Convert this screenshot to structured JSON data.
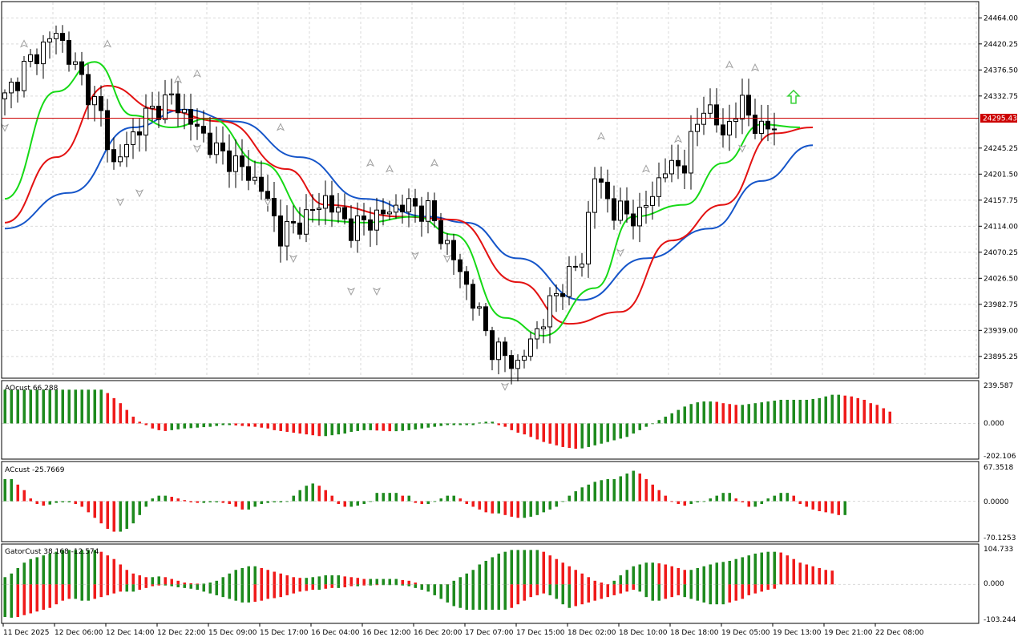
{
  "colors": {
    "background": "#ffffff",
    "grid": "#d9d9d9",
    "frame": "#000000",
    "bull_candle": "#ffffff",
    "bear_candle": "#000000",
    "alligator_jaw": "#1555c9",
    "alligator_teeth": "#e31212",
    "alligator_lips": "#16d916",
    "price_line": "#cc0000",
    "osc_up": "#1e8a1e",
    "osc_down": "#ef1a1a",
    "fractal": "#a0a0a0",
    "signal_arrow": "#35d035"
  },
  "price_panel": {
    "current_price": "24295.43",
    "ticks": [
      "24464.00",
      "24420.25",
      "24376.50",
      "24332.75",
      "24245.25",
      "24201.50",
      "24157.75",
      "24114.00",
      "24070.25",
      "24026.50",
      "23982.75",
      "23939.00",
      "23895.25"
    ],
    "signal_icon": "up-arrow-icon",
    "fractal_icon": "fractal-arrow-icon"
  },
  "indicators": [
    {
      "id": "ao",
      "label": "AOcust 66.288",
      "ticks": [
        "239.587",
        "0.000",
        "-202.106"
      ]
    },
    {
      "id": "ac",
      "label": "ACcust -25.7669",
      "ticks": [
        "67.3518",
        "0.0000",
        "-70.1253"
      ]
    },
    {
      "id": "gator",
      "label": "GatorCust 38.168 -12.574",
      "ticks": [
        "104.733",
        "0.000",
        "-103.244"
      ]
    }
  ],
  "x_labels": [
    "11 Dec 2025",
    "12 Dec 06:00",
    "12 Dec 14:00",
    "12 Dec 22:00",
    "15 Dec 09:00",
    "15 Dec 17:00",
    "16 Dec 04:00",
    "16 Dec 12:00",
    "16 Dec 20:00",
    "17 Dec 07:00",
    "17 Dec 15:00",
    "18 Dec 02:00",
    "18 Dec 10:00",
    "18 Dec 18:00",
    "19 Dec 05:00",
    "19 Dec 13:00",
    "19 Dec 21:00",
    "22 Dec 08:00"
  ],
  "chart_data": [
    {
      "type": "candlestick",
      "title": "",
      "ylim": [
        23860,
        24490
      ],
      "current_price": 24295.43,
      "candle_count": 121,
      "ohlc_anchors": [
        {
          "i": 0,
          "close": 24330
        },
        {
          "i": 3,
          "close": 24380
        },
        {
          "i": 8,
          "close": 24440
        },
        {
          "i": 12,
          "close": 24360
        },
        {
          "i": 15,
          "close": 24300
        },
        {
          "i": 17,
          "close": 24215
        },
        {
          "i": 19,
          "close": 24250
        },
        {
          "i": 22,
          "close": 24300
        },
        {
          "i": 26,
          "close": 24330
        },
        {
          "i": 29,
          "close": 24290
        },
        {
          "i": 33,
          "close": 24240
        },
        {
          "i": 36,
          "close": 24220
        },
        {
          "i": 40,
          "close": 24180
        },
        {
          "i": 43,
          "close": 24100
        },
        {
          "i": 46,
          "close": 24120
        },
        {
          "i": 50,
          "close": 24160
        },
        {
          "i": 54,
          "close": 24110
        },
        {
          "i": 58,
          "close": 24130
        },
        {
          "i": 62,
          "close": 24150
        },
        {
          "i": 66,
          "close": 24140
        },
        {
          "i": 70,
          "close": 24060
        },
        {
          "i": 73,
          "close": 23990
        },
        {
          "i": 76,
          "close": 23910
        },
        {
          "i": 80,
          "close": 23880
        },
        {
          "i": 83,
          "close": 23940
        },
        {
          "i": 86,
          "close": 24000
        },
        {
          "i": 90,
          "close": 24060
        },
        {
          "i": 92,
          "close": 24200
        },
        {
          "i": 95,
          "close": 24140
        },
        {
          "i": 99,
          "close": 24130
        },
        {
          "i": 103,
          "close": 24210
        },
        {
          "i": 106,
          "close": 24220
        },
        {
          "i": 109,
          "close": 24320
        },
        {
          "i": 112,
          "close": 24270
        },
        {
          "i": 115,
          "close": 24320
        },
        {
          "i": 118,
          "close": 24270
        },
        {
          "i": 120,
          "close": 24290
        }
      ],
      "alligator": {
        "jaw": [
          [
            0,
            24110
          ],
          [
            10,
            24170
          ],
          [
            20,
            24280
          ],
          [
            28,
            24310
          ],
          [
            36,
            24290
          ],
          [
            46,
            24230
          ],
          [
            56,
            24160
          ],
          [
            66,
            24130
          ],
          [
            72,
            24120
          ],
          [
            80,
            24060
          ],
          [
            90,
            23990
          ],
          [
            100,
            24060
          ],
          [
            110,
            24110
          ],
          [
            118,
            24190
          ],
          [
            126,
            24250
          ]
        ],
        "teeth": [
          [
            0,
            24120
          ],
          [
            8,
            24230
          ],
          [
            16,
            24350
          ],
          [
            24,
            24310
          ],
          [
            34,
            24290
          ],
          [
            44,
            24210
          ],
          [
            50,
            24150
          ],
          [
            62,
            24130
          ],
          [
            70,
            24125
          ],
          [
            80,
            24020
          ],
          [
            88,
            23950
          ],
          [
            96,
            23970
          ],
          [
            104,
            24090
          ],
          [
            112,
            24150
          ],
          [
            120,
            24270
          ],
          [
            126,
            24280
          ]
        ],
        "lips": [
          [
            0,
            24160
          ],
          [
            8,
            24340
          ],
          [
            14,
            24390
          ],
          [
            20,
            24300
          ],
          [
            26,
            24280
          ],
          [
            32,
            24295
          ],
          [
            40,
            24220
          ],
          [
            48,
            24125
          ],
          [
            56,
            24120
          ],
          [
            64,
            24130
          ],
          [
            70,
            24100
          ],
          [
            78,
            23960
          ],
          [
            84,
            23930
          ],
          [
            92,
            24010
          ],
          [
            98,
            24130
          ],
          [
            106,
            24150
          ],
          [
            112,
            24220
          ],
          [
            118,
            24285
          ],
          [
            124,
            24280
          ]
        ]
      },
      "fractals": {
        "up": [
          [
            3,
            24410
          ],
          [
            16,
            24410
          ],
          [
            27,
            24350
          ],
          [
            30,
            24360
          ],
          [
            43,
            24270
          ],
          [
            57,
            24210
          ],
          [
            60,
            24200
          ],
          [
            67,
            24210
          ],
          [
            93,
            24255
          ],
          [
            100,
            24200
          ],
          [
            105,
            24250
          ],
          [
            113,
            24375
          ],
          [
            117,
            24370
          ]
        ],
        "down": [
          [
            0,
            24290
          ],
          [
            18,
            24165
          ],
          [
            21,
            24180
          ],
          [
            30,
            24255
          ],
          [
            41,
            24165
          ],
          [
            45,
            24070
          ],
          [
            54,
            24015
          ],
          [
            58,
            24015
          ],
          [
            64,
            24075
          ],
          [
            69,
            24070
          ],
          [
            78,
            23855
          ],
          [
            96,
            24080
          ],
          [
            115,
            24255
          ]
        ]
      },
      "signal_up_index": 123
    },
    {
      "type": "bar",
      "name": "AOcust",
      "ylim": [
        -202.106,
        239.587
      ],
      "last_value": 66.288,
      "series": [
        {
          "name": "AOcust",
          "values": [
            200,
            200,
            200,
            200,
            200,
            200,
            200,
            200,
            200,
            200,
            200,
            200,
            200,
            200,
            200,
            200,
            180,
            150,
            120,
            80,
            40,
            10,
            -10,
            -30,
            -40,
            -45,
            -40,
            -35,
            -30,
            -28,
            -25,
            -22,
            -20,
            -15,
            -10,
            -10,
            -12,
            -15,
            -18,
            -20,
            -25,
            -30,
            -40,
            -45,
            -50,
            -55,
            -60,
            -65,
            -70,
            -75,
            -75,
            -70,
            -65,
            -60,
            -50,
            -45,
            -40,
            -40,
            -42,
            -44,
            -46,
            -46,
            -44,
            -40,
            -36,
            -30,
            -25,
            -20,
            -15,
            -10,
            -10,
            -10,
            -10,
            -10,
            5,
            10,
            10,
            -10,
            -20,
            -40,
            -55,
            -65,
            -80,
            -95,
            -110,
            -120,
            -130,
            -140,
            -145,
            -150,
            -148,
            -140,
            -130,
            -120,
            -110,
            -100,
            -90,
            -80,
            -60,
            -40,
            -20,
            0,
            20,
            40,
            60,
            80,
            100,
            115,
            125,
            130,
            130,
            128,
            120,
            115,
            110,
            110,
            115,
            120,
            125,
            130,
            135,
            140,
            140,
            140,
            140,
            140,
            145,
            150,
            160,
            170,
            170,
            165,
            160,
            150,
            140,
            120,
            110,
            90,
            70
          ]
        }
      ]
    },
    {
      "type": "bar",
      "name": "ACcust",
      "ylim": [
        -70.1253,
        67.3518
      ],
      "last_value": -25.7669,
      "series": [
        {
          "name": "ACcust",
          "values": [
            40,
            40,
            30,
            20,
            5,
            -5,
            -8,
            -6,
            -3,
            -2,
            -2,
            -5,
            -10,
            -20,
            -30,
            -40,
            -50,
            -55,
            -55,
            -50,
            -40,
            -25,
            -10,
            5,
            10,
            10,
            8,
            5,
            2,
            -2,
            -3,
            -3,
            -2,
            -2,
            -3,
            -5,
            -10,
            -15,
            -15,
            -10,
            -5,
            -3,
            -2,
            -2,
            0,
            10,
            20,
            28,
            32,
            28,
            20,
            10,
            -5,
            -10,
            -10,
            -8,
            -5,
            0,
            15,
            15,
            15,
            15,
            10,
            10,
            -3,
            -5,
            -5,
            0,
            5,
            10,
            10,
            5,
            -5,
            -10,
            -15,
            -20,
            -22,
            -22,
            -25,
            -28,
            -30,
            -30,
            -28,
            -25,
            -20,
            -15,
            -10,
            0,
            10,
            18,
            25,
            30,
            35,
            38,
            40,
            40,
            45,
            50,
            55,
            50,
            40,
            30,
            20,
            10,
            0,
            -5,
            -8,
            -5,
            -2,
            0,
            5,
            10,
            15,
            15,
            5,
            -2,
            -10,
            -10,
            -5,
            5,
            10,
            15,
            15,
            10,
            -5,
            -10,
            -15,
            -18,
            -20,
            -22,
            -25,
            -25
          ]
        }
      ]
    },
    {
      "type": "bar",
      "name": "GatorCust",
      "ylim": [
        -103.244,
        104.733
      ],
      "last_values": [
        38.168,
        -12.574
      ],
      "series": [
        {
          "name": "upper",
          "values": [
            20,
            30,
            45,
            60,
            70,
            75,
            80,
            85,
            90,
            95,
            95,
            95,
            95,
            95,
            95,
            90,
            80,
            70,
            55,
            40,
            30,
            25,
            20,
            20,
            22,
            20,
            15,
            10,
            5,
            3,
            2,
            2,
            5,
            10,
            20,
            30,
            40,
            45,
            50,
            50,
            45,
            40,
            35,
            30,
            25,
            20,
            18,
            18,
            20,
            22,
            25,
            25,
            25,
            22,
            20,
            18,
            15,
            15,
            15,
            15,
            15,
            15,
            12,
            10,
            5,
            0,
            -3,
            -5,
            -8,
            0,
            10,
            20,
            30,
            40,
            55,
            65,
            75,
            85,
            90,
            95,
            95,
            95,
            95,
            95,
            90,
            80,
            70,
            60,
            50,
            40,
            30,
            20,
            10,
            5,
            0,
            10,
            25,
            40,
            50,
            55,
            60,
            60,
            58,
            55,
            50,
            45,
            40,
            40,
            45,
            50,
            55,
            60,
            62,
            65,
            70,
            75,
            80,
            85,
            88,
            90,
            90,
            88,
            80,
            70,
            60,
            55,
            50,
            45,
            40,
            38
          ]
        },
        {
          "name": "lower",
          "values": [
            -90,
            -92,
            -90,
            -85,
            -80,
            -75,
            -70,
            -65,
            -55,
            -45,
            -40,
            -40,
            -45,
            -45,
            -40,
            -35,
            -30,
            -25,
            -20,
            -20,
            -20,
            -15,
            -10,
            -5,
            -3,
            -3,
            -5,
            -8,
            -10,
            -12,
            -15,
            -20,
            -25,
            -30,
            -35,
            -40,
            -45,
            -50,
            -50,
            -48,
            -45,
            -40,
            -38,
            -35,
            -30,
            -25,
            -20,
            -18,
            -15,
            -15,
            -12,
            -10,
            -10,
            -8,
            -5,
            -5,
            -3,
            -3,
            -2,
            -2,
            -2,
            -2,
            -3,
            -5,
            -10,
            -15,
            -20,
            -30,
            -40,
            -50,
            -60,
            -65,
            -70,
            -70,
            -70,
            -70,
            -70,
            -70,
            -70,
            -65,
            -55,
            -45,
            -35,
            -30,
            -25,
            -30,
            -40,
            -55,
            -65,
            -60,
            -55,
            -50,
            -45,
            -40,
            -35,
            -30,
            -25,
            -20,
            -15,
            -20,
            -35,
            -45,
            -45,
            -40,
            -35,
            -30,
            -35,
            -40,
            -45,
            -50,
            -55,
            -55,
            -55,
            -50,
            -45,
            -40,
            -30,
            -25,
            -20,
            -15,
            -12
          ]
        }
      ]
    }
  ]
}
